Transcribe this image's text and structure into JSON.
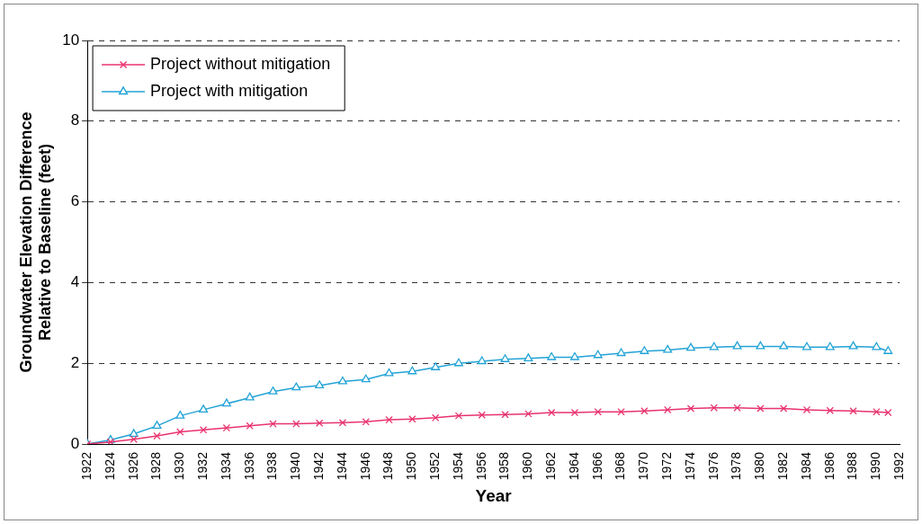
{
  "chart_data": {
    "type": "line",
    "xlabel": "Year",
    "ylabel": "Groundwater Elevation Difference\nRelative to Baseline (feet)",
    "x": [
      1922,
      1924,
      1926,
      1928,
      1930,
      1932,
      1934,
      1936,
      1938,
      1940,
      1942,
      1944,
      1946,
      1948,
      1950,
      1952,
      1954,
      1956,
      1958,
      1960,
      1962,
      1964,
      1966,
      1968,
      1970,
      1972,
      1974,
      1976,
      1978,
      1980,
      1982,
      1984,
      1986,
      1988,
      1990,
      1991
    ],
    "series": [
      {
        "name": "Project without mitigation",
        "color": "#e8336e",
        "marker": "cross",
        "values": [
          0,
          0.05,
          0.12,
          0.2,
          0.3,
          0.35,
          0.4,
          0.45,
          0.5,
          0.5,
          0.52,
          0.53,
          0.55,
          0.6,
          0.62,
          0.65,
          0.7,
          0.72,
          0.73,
          0.75,
          0.78,
          0.78,
          0.8,
          0.8,
          0.82,
          0.85,
          0.88,
          0.9,
          0.9,
          0.88,
          0.88,
          0.85,
          0.83,
          0.82,
          0.8,
          0.78
        ]
      },
      {
        "name": "Project with mitigation",
        "color": "#22a3d6",
        "marker": "triangle",
        "values": [
          0,
          0.1,
          0.25,
          0.45,
          0.7,
          0.85,
          1.0,
          1.15,
          1.3,
          1.4,
          1.45,
          1.55,
          1.6,
          1.75,
          1.8,
          1.9,
          2.0,
          2.05,
          2.1,
          2.12,
          2.15,
          2.15,
          2.2,
          2.25,
          2.3,
          2.33,
          2.38,
          2.4,
          2.42,
          2.42,
          2.42,
          2.4,
          2.4,
          2.42,
          2.4,
          2.3
        ]
      }
    ],
    "xlim": [
      1922,
      1992
    ],
    "xticks": [
      1922,
      1924,
      1926,
      1928,
      1930,
      1932,
      1934,
      1936,
      1938,
      1940,
      1942,
      1944,
      1946,
      1948,
      1950,
      1952,
      1954,
      1956,
      1958,
      1960,
      1962,
      1964,
      1966,
      1968,
      1970,
      1972,
      1974,
      1976,
      1978,
      1980,
      1982,
      1984,
      1986,
      1988,
      1990,
      1992
    ],
    "ylim": [
      0,
      10
    ],
    "yticks": [
      0,
      2,
      4,
      6,
      8,
      10
    ],
    "grid": "y",
    "legend": "top left"
  }
}
